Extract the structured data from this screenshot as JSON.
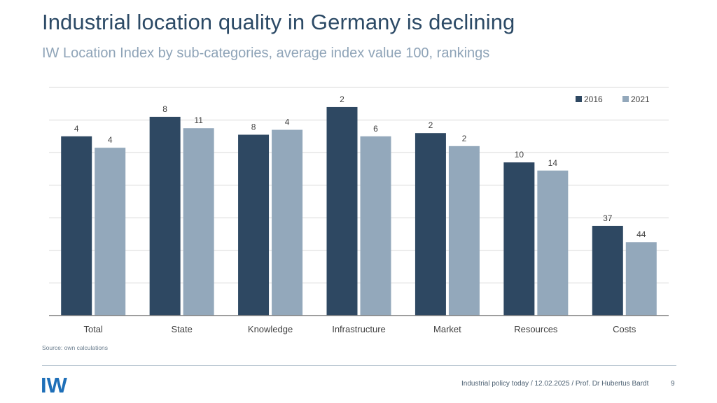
{
  "title": "Industrial location quality in Germany is declining",
  "subtitle": "IW Location Index by sub-categories, average index value 100, rankings",
  "source": "Source: own calculations",
  "footer": {
    "text": "Industrial policy today / 12.02.2025 / Prof. Dr Hubertus Bardt",
    "page": "9"
  },
  "logo": {
    "text": "IW"
  },
  "colors": {
    "series_2016": "#2e4862",
    "series_2021": "#93a8bb",
    "grid": "#d9d9d9",
    "axis": "#7f7f7f",
    "title": "#2c4a66",
    "brand": "#1e6fb8"
  },
  "chart_data": {
    "type": "bar",
    "categories": [
      "Total",
      "State",
      "Knowledge",
      "Infrastructure",
      "Market",
      "Resources",
      "Costs"
    ],
    "series": [
      {
        "name": "2016",
        "values": [
          130,
          142,
          131,
          148,
          132,
          114,
          75
        ],
        "labels": [
          "4",
          "8",
          "8",
          "2",
          "2",
          "10",
          "37"
        ]
      },
      {
        "name": "2021",
        "values": [
          123,
          135,
          134,
          130,
          124,
          109,
          65
        ],
        "labels": [
          "4",
          "11",
          "4",
          "6",
          "2",
          "14",
          "44"
        ]
      }
    ],
    "ylim": [
      20,
      160
    ],
    "grid": true,
    "legend": "top-right",
    "xlabel": "",
    "ylabel": ""
  }
}
